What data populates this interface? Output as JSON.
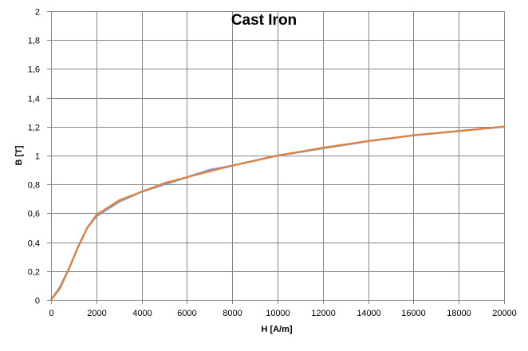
{
  "chart_data": {
    "type": "line",
    "title": "Cast Iron",
    "xlabel": "H [A/m]",
    "ylabel": "B [T]",
    "xlim": [
      0,
      20000
    ],
    "ylim": [
      0,
      2
    ],
    "x_ticks": [
      "0",
      "2000",
      "4000",
      "6000",
      "8000",
      "10000",
      "12000",
      "14000",
      "16000",
      "18000",
      "20000"
    ],
    "y_ticks": [
      "0",
      "0,2",
      "0,4",
      "0,6",
      "0,8",
      "1",
      "1,2",
      "1,4",
      "1,6",
      "1,8",
      "2"
    ],
    "grid": true,
    "legend": "none",
    "series": [
      {
        "color": "#7f9bc0",
        "points": [
          {
            "x": 0,
            "y": 0
          },
          {
            "x": 400,
            "y": 0.09
          },
          {
            "x": 800,
            "y": 0.22
          },
          {
            "x": 1200,
            "y": 0.37
          },
          {
            "x": 1600,
            "y": 0.5
          },
          {
            "x": 2000,
            "y": 0.58
          },
          {
            "x": 3000,
            "y": 0.68
          },
          {
            "x": 4000,
            "y": 0.75
          },
          {
            "x": 5000,
            "y": 0.8
          },
          {
            "x": 6000,
            "y": 0.85
          },
          {
            "x": 7000,
            "y": 0.9
          },
          {
            "x": 8000,
            "y": 0.93
          },
          {
            "x": 10000,
            "y": 1.0
          },
          {
            "x": 12000,
            "y": 1.05
          },
          {
            "x": 14000,
            "y": 1.1
          },
          {
            "x": 16000,
            "y": 1.14
          },
          {
            "x": 18000,
            "y": 1.17
          },
          {
            "x": 20000,
            "y": 1.2
          }
        ]
      },
      {
        "color": "#ed7d31",
        "points": [
          {
            "x": 0,
            "y": 0
          },
          {
            "x": 400,
            "y": 0.08
          },
          {
            "x": 800,
            "y": 0.22
          },
          {
            "x": 1200,
            "y": 0.37
          },
          {
            "x": 1600,
            "y": 0.5
          },
          {
            "x": 2000,
            "y": 0.59
          },
          {
            "x": 3000,
            "y": 0.69
          },
          {
            "x": 4000,
            "y": 0.75
          },
          {
            "x": 5000,
            "y": 0.81
          },
          {
            "x": 6000,
            "y": 0.85
          },
          {
            "x": 7000,
            "y": 0.89
          },
          {
            "x": 8000,
            "y": 0.93
          },
          {
            "x": 10000,
            "y": 1.0
          },
          {
            "x": 12000,
            "y": 1.055
          },
          {
            "x": 14000,
            "y": 1.1
          },
          {
            "x": 16000,
            "y": 1.14
          },
          {
            "x": 18000,
            "y": 1.17
          },
          {
            "x": 20000,
            "y": 1.2
          }
        ]
      }
    ]
  }
}
